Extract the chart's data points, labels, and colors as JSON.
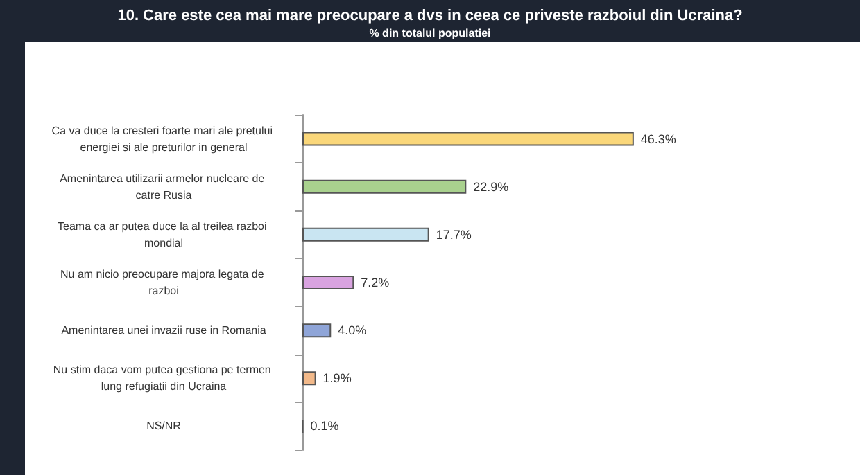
{
  "chart_data": {
    "type": "bar",
    "orientation": "horizontal",
    "title": "10. Care este cea mai mare preocupare a dvs in ceea ce priveste razboiul din Ucraina?",
    "subtitle": "% din totalul populatiei",
    "categories": [
      "Ca va duce la cresteri foarte mari ale pretului energiei si ale preturilor in general",
      "Amenintarea utilizarii armelor nucleare de catre Rusia",
      "Teama ca ar putea duce la al treilea razboi mondial",
      "Nu am nicio preocupare majora legata de razboi",
      "Amenintarea unei invazii ruse in Romania",
      "Nu stim daca vom putea gestiona pe termen lung refugiatii din Ucraina",
      "NS/NR"
    ],
    "values": [
      46.3,
      22.9,
      17.7,
      7.2,
      4.0,
      1.9,
      0.1
    ],
    "value_labels": [
      "46.3%",
      "22.9%",
      "17.7%",
      "7.2%",
      "4.0%",
      "1.9%",
      "0.1%"
    ],
    "colors": [
      "#fad77a",
      "#a9d18e",
      "#c9e5f2",
      "#d9a3e0",
      "#8fa5d8",
      "#f2b98a",
      "#555555"
    ]
  }
}
